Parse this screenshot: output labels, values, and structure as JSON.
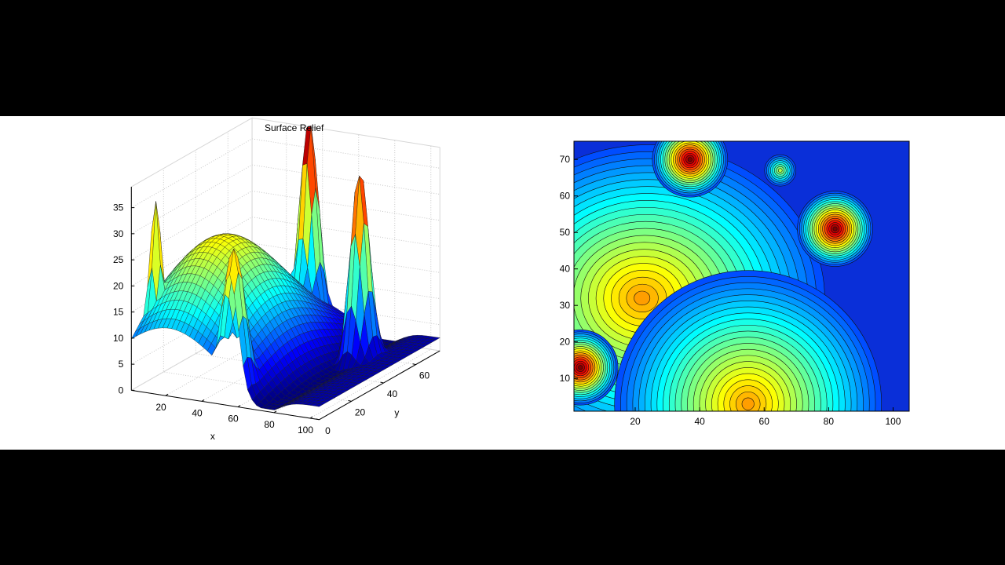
{
  "chart_data": [
    {
      "type": "surface",
      "title": "Surface Relief",
      "xlabel": "x",
      "ylabel": "y",
      "xlim": [
        1,
        105
      ],
      "ylim": [
        0,
        75
      ],
      "zlim": [
        0,
        40
      ],
      "grid": true,
      "x_ticks": [
        "20",
        "40",
        "60",
        "80",
        "100"
      ],
      "y_ticks": [
        "0",
        "20",
        "40",
        "60"
      ],
      "z_ticks": [
        "0",
        "5",
        "10",
        "15",
        "20",
        "25",
        "30",
        "35"
      ],
      "colormap": "jet",
      "features": [
        {
          "kind": "dome",
          "x": 22,
          "y": 32,
          "z": 25,
          "spread": 28
        },
        {
          "kind": "peak",
          "x": 37,
          "y": 70,
          "z": 40,
          "spread": 4
        },
        {
          "kind": "peak",
          "x": 82,
          "y": 51,
          "z": 38,
          "spread": 4
        },
        {
          "kind": "peak",
          "x": 55,
          "y": 3,
          "z": 28,
          "spread": 5
        },
        {
          "kind": "peak",
          "x": 3,
          "y": 13,
          "z": 33,
          "spread": 3
        }
      ]
    },
    {
      "type": "contour",
      "title": "",
      "xlim": [
        1,
        105
      ],
      "ylim": [
        1,
        75
      ],
      "x_ticks": [
        "20",
        "40",
        "60",
        "80",
        "100"
      ],
      "y_ticks": [
        "10",
        "20",
        "30",
        "40",
        "50",
        "60",
        "70"
      ],
      "colormap": "jet",
      "centers": [
        {
          "x": 22,
          "y": 32,
          "level": "high"
        },
        {
          "x": 37,
          "y": 70,
          "level": "max"
        },
        {
          "x": 82,
          "y": 51,
          "level": "max"
        },
        {
          "x": 55,
          "y": 3,
          "level": "high"
        },
        {
          "x": 3,
          "y": 13,
          "level": "max"
        },
        {
          "x": 65,
          "y": 67,
          "level": "mid"
        }
      ]
    }
  ]
}
